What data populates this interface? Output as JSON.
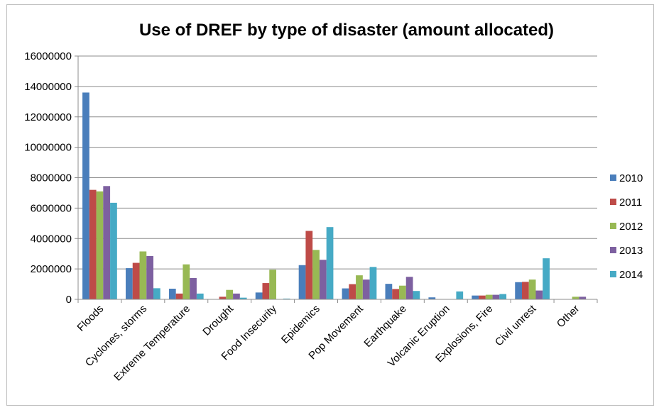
{
  "chart_data": {
    "type": "bar",
    "title": "Use of DREF by type of disaster (amount allocated)",
    "xlabel": "",
    "ylabel": "",
    "ylim": [
      0,
      16000000
    ],
    "yticks": [
      "0",
      "2000000",
      "4000000",
      "6000000",
      "8000000",
      "10000000",
      "12000000",
      "14000000",
      "16000000"
    ],
    "grid": true,
    "legend_position": "right",
    "categories": [
      "Floods",
      "Cyclones, storms",
      "Extreme Temperature",
      "Drought",
      "Food Insecurity",
      "Epidemics",
      "Pop Movement",
      "Earthquake",
      "Volcanic Eruption",
      "Explosions, Fire",
      "Civil unrest",
      "Other"
    ],
    "series": [
      {
        "name": "2010",
        "color": "#4a7ebb",
        "values": [
          13600000,
          2050000,
          700000,
          0,
          450000,
          2250000,
          720000,
          1020000,
          130000,
          250000,
          1130000,
          0
        ]
      },
      {
        "name": "2011",
        "color": "#be4b48",
        "values": [
          7200000,
          2400000,
          380000,
          170000,
          1070000,
          4500000,
          1000000,
          680000,
          0,
          250000,
          1150000,
          0
        ]
      },
      {
        "name": "2012",
        "color": "#98b954",
        "values": [
          7100000,
          3150000,
          2300000,
          620000,
          1950000,
          3250000,
          1580000,
          900000,
          0,
          300000,
          1300000,
          170000
        ]
      },
      {
        "name": "2013",
        "color": "#7d60a0",
        "values": [
          7450000,
          2850000,
          1400000,
          380000,
          0,
          2600000,
          1300000,
          1480000,
          0,
          300000,
          580000,
          170000
        ]
      },
      {
        "name": "2014",
        "color": "#46aac5",
        "values": [
          6350000,
          730000,
          380000,
          110000,
          50000,
          4750000,
          2130000,
          550000,
          520000,
          350000,
          2700000,
          0
        ]
      }
    ]
  }
}
